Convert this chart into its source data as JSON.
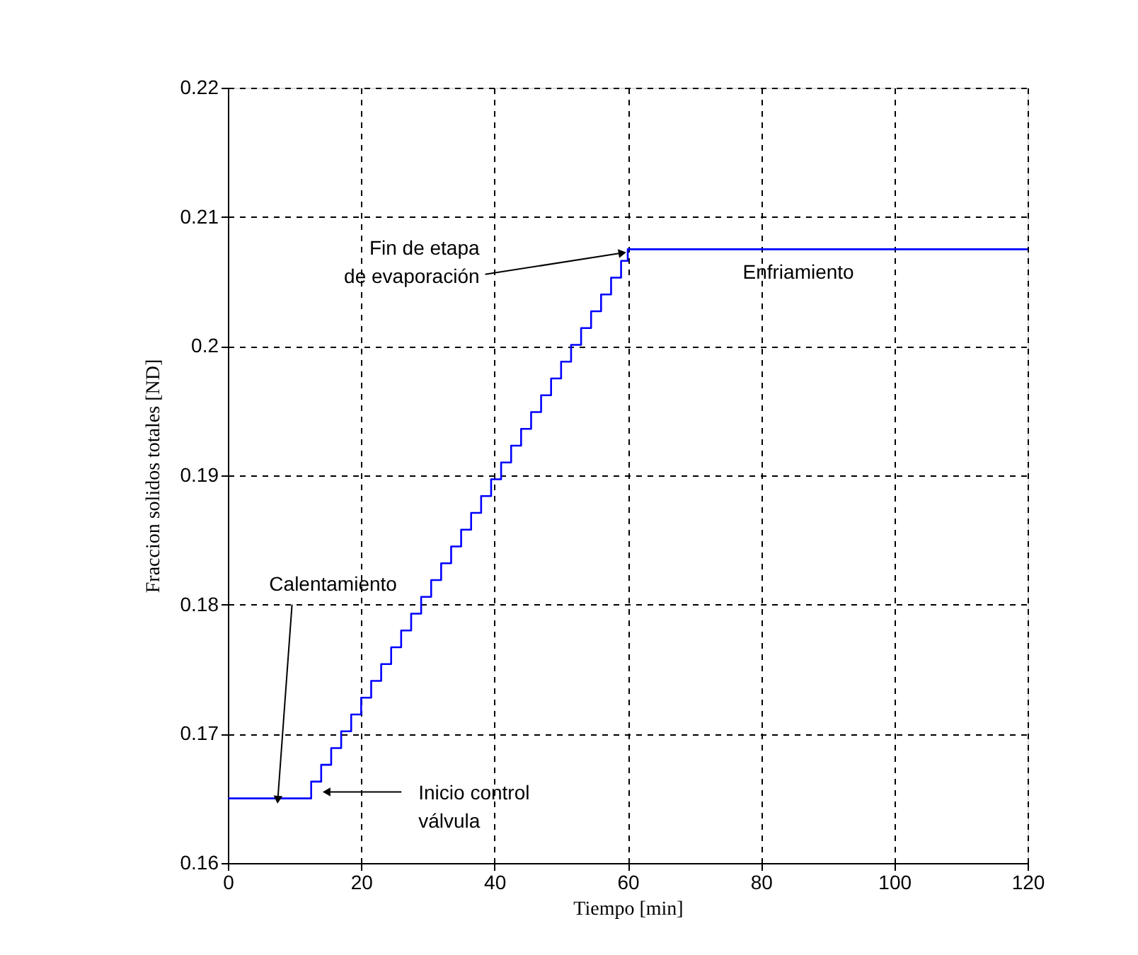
{
  "chart_data": {
    "type": "step",
    "xlabel": "Tiempo [min]",
    "ylabel": "Fraccion solidos totales [ND]",
    "x": [
      0,
      11,
      12.5,
      14,
      15.5,
      17,
      18.5,
      20,
      21.5,
      23,
      24.5,
      26,
      27.5,
      29,
      30.5,
      32,
      33.5,
      35,
      36.5,
      38,
      39.5,
      41,
      42.5,
      44,
      45.5,
      47,
      48.5,
      50,
      51.5,
      53,
      54.5,
      56,
      57.5,
      59,
      60,
      120
    ],
    "series": [
      {
        "color": "#0000ff",
        "values": [
          0.165,
          0.165,
          0.1663,
          0.1676,
          0.1689,
          0.1702,
          0.1715,
          0.1728,
          0.1741,
          0.1754,
          0.1767,
          0.178,
          0.1793,
          0.1806,
          0.1819,
          0.1832,
          0.1845,
          0.1858,
          0.1871,
          0.1884,
          0.1897,
          0.191,
          0.1923,
          0.1936,
          0.1949,
          0.1962,
          0.1975,
          0.1988,
          0.2001,
          0.2014,
          0.2027,
          0.204,
          0.2053,
          0.2066,
          0.2075,
          0.2075
        ]
      }
    ],
    "xlim": [
      0,
      120
    ],
    "xticks": [
      0,
      20,
      40,
      60,
      80,
      100,
      120
    ],
    "ylim": [
      0.16,
      0.22
    ],
    "yticks": [
      0.16,
      0.17,
      0.18,
      0.19,
      0.2,
      0.21,
      0.22
    ],
    "grid": true,
    "line_style": "solid",
    "annotations": [
      {
        "text": "Calentamiento",
        "x": 7.5,
        "y": 0.165
      },
      {
        "text": "Inicio control\nválvula",
        "x": 15,
        "y": 0.1655
      },
      {
        "text": "Fin de etapa\nde evaporación",
        "x": 59,
        "y": 0.2072
      },
      {
        "text": "Enfriamiento",
        "x": 90,
        "y": 0.2075
      }
    ]
  }
}
